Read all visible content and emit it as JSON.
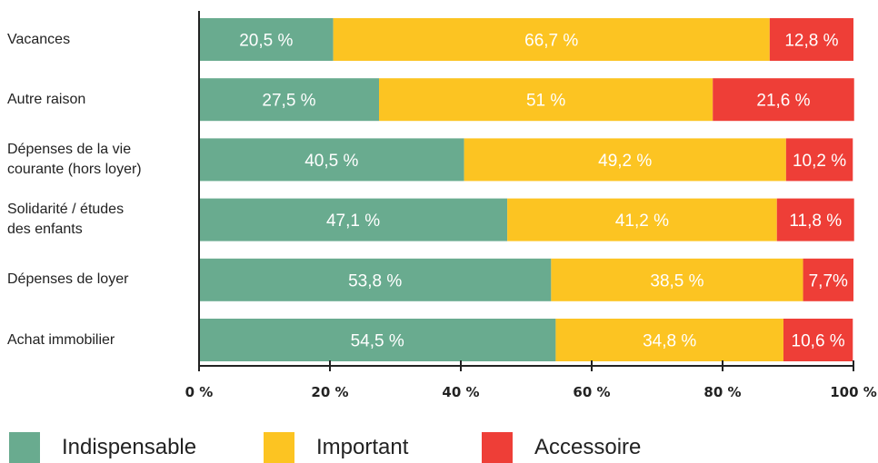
{
  "chart_data": {
    "type": "bar",
    "orientation": "horizontal",
    "stacked": true,
    "categories": [
      "Vacances",
      "Autre raison",
      "Dépenses de la vie\ncourante (hors loyer)",
      "Solidarité / études\ndes enfants",
      "Dépenses de loyer",
      "Achat immobilier"
    ],
    "series": [
      {
        "name": "Indispensable",
        "color": "#69ab8f",
        "values": [
          20.5,
          27.5,
          40.5,
          47.1,
          53.8,
          54.5
        ],
        "labels": [
          "20,5 %",
          "27,5 %",
          "40,5 %",
          "47,1 %",
          "53,8 %",
          "54,5 %"
        ]
      },
      {
        "name": "Important",
        "color": "#fcc422",
        "values": [
          66.7,
          51,
          49.2,
          41.2,
          38.5,
          34.8
        ],
        "labels": [
          "66,7 %",
          "51 %",
          "49,2 %",
          "41,2 %",
          "38,5 %",
          "34,8 %"
        ]
      },
      {
        "name": "Accessoire",
        "color": "#ee3e37",
        "values": [
          12.8,
          21.6,
          10.2,
          11.8,
          7.7,
          10.6
        ],
        "labels": [
          "12,8 %",
          "21,6 %",
          "10,2 %",
          "11,8 %",
          "7,7%",
          "10,6 %"
        ]
      }
    ],
    "xlim": [
      0,
      100
    ],
    "xticks": [
      0,
      20,
      40,
      60,
      80,
      100
    ],
    "xtick_labels": [
      "0 %",
      "20 %",
      "40 %",
      "60 %",
      "80 %",
      "100 %"
    ],
    "grid": false,
    "legend_position": "bottom"
  }
}
